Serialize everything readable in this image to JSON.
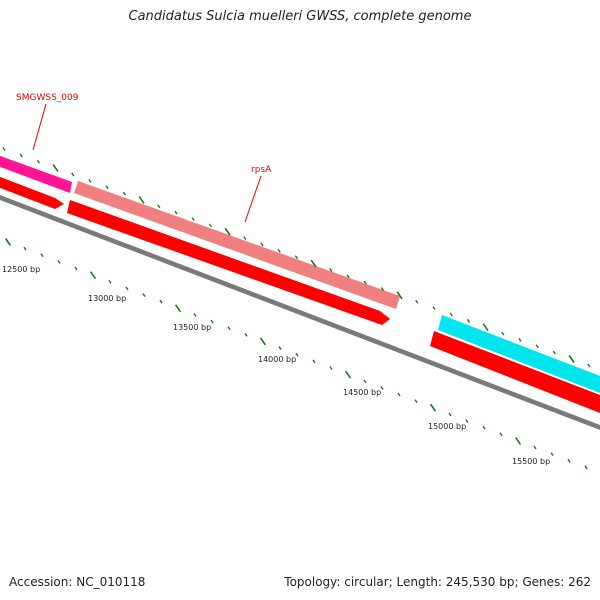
{
  "title": "Candidatus Sulcia muelleri GWSS, complete genome",
  "footer": {
    "accession": "Accession: NC_010118",
    "summary": "Topology: circular; Length: 245,530 bp; Genes: 262"
  },
  "colors": {
    "backbone": "#7a7a7a",
    "tick": "#1a7a1a",
    "cds": "#ff0000",
    "gene_pink": "#ff1493",
    "gene_salmon": "#f08080",
    "gene_cyan": "#00e5ee",
    "label": "#e00000"
  },
  "map": {
    "bp_labels": [
      "12500 bp",
      "13000 bp",
      "13500 bp",
      "14000 bp",
      "14500 bp",
      "15000 bp",
      "15500 bp"
    ],
    "gene_labels": {
      "smgwss": "SMGWSS_009",
      "rpsA": "rpsA"
    }
  }
}
